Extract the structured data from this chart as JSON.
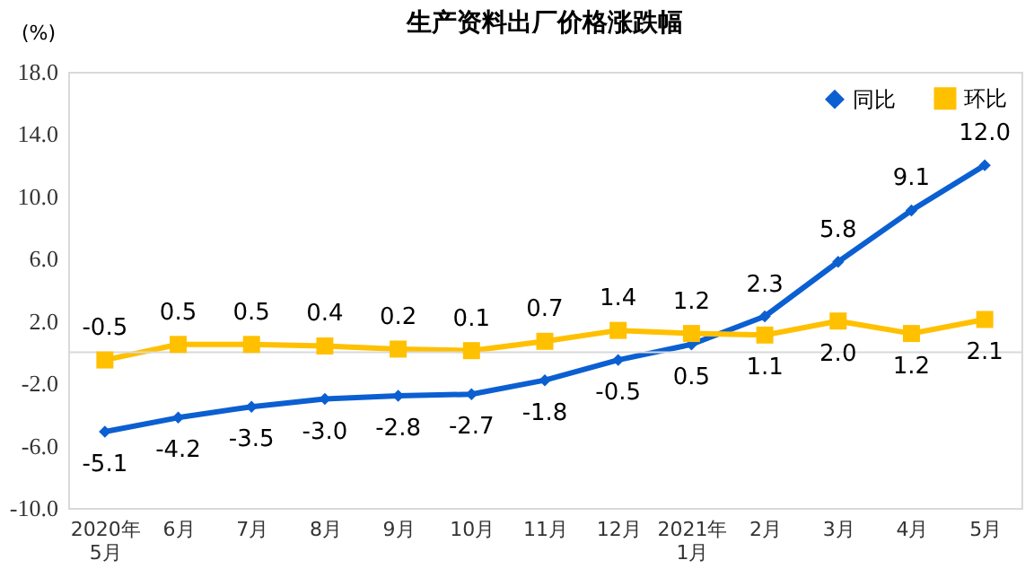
{
  "chart_data": {
    "type": "line",
    "title": "生产资料出厂价格涨跌幅",
    "ylabel": "(%)",
    "categories": [
      "2020年\n5月",
      "6月",
      "7月",
      "8月",
      "9月",
      "10月",
      "11月",
      "12月",
      "2021年\n1月",
      "2月",
      "3月",
      "4月",
      "5月"
    ],
    "series": [
      {
        "name": "同比",
        "color": "#0b5fd1",
        "marker": "diamond",
        "values": [
          -5.1,
          -4.2,
          -3.5,
          -3.0,
          -2.8,
          -2.7,
          -1.8,
          -0.5,
          0.5,
          2.3,
          5.8,
          9.1,
          12.0
        ],
        "value_labels": [
          "-5.1",
          "-4.2",
          "-3.5",
          "-3.0",
          "-2.8",
          "-2.7",
          "-1.8",
          "-0.5",
          "0.5",
          "2.3",
          "5.8",
          "9.1",
          "12.0"
        ]
      },
      {
        "name": "环比",
        "color": "#ffc000",
        "marker": "square",
        "values": [
          -0.5,
          0.5,
          0.5,
          0.4,
          0.2,
          0.1,
          0.7,
          1.4,
          1.2,
          1.1,
          2.0,
          1.2,
          2.1
        ],
        "value_labels": [
          "-0.5",
          "0.5",
          "0.5",
          "0.4",
          "0.2",
          "0.1",
          "0.7",
          "1.4",
          "1.2",
          "1.1",
          "2.0",
          "1.2",
          "2.1"
        ]
      }
    ],
    "ylim": [
      -10,
      18
    ],
    "yticks": [
      {
        "value": -10,
        "label": "-10.0"
      },
      {
        "value": -6,
        "label": "-6.0"
      },
      {
        "value": -2,
        "label": "-2.0"
      },
      {
        "value": 2,
        "label": "2.0"
      },
      {
        "value": 6,
        "label": "6.0"
      },
      {
        "value": 10,
        "label": "10.0"
      },
      {
        "value": 14,
        "label": "14.0"
      },
      {
        "value": 18,
        "label": "18.0"
      }
    ],
    "ref_lines": [
      {
        "axis": "y",
        "value": 0,
        "color": "#d9d9d9"
      }
    ],
    "grid": false,
    "legend": "top right",
    "line_style": "solid"
  }
}
